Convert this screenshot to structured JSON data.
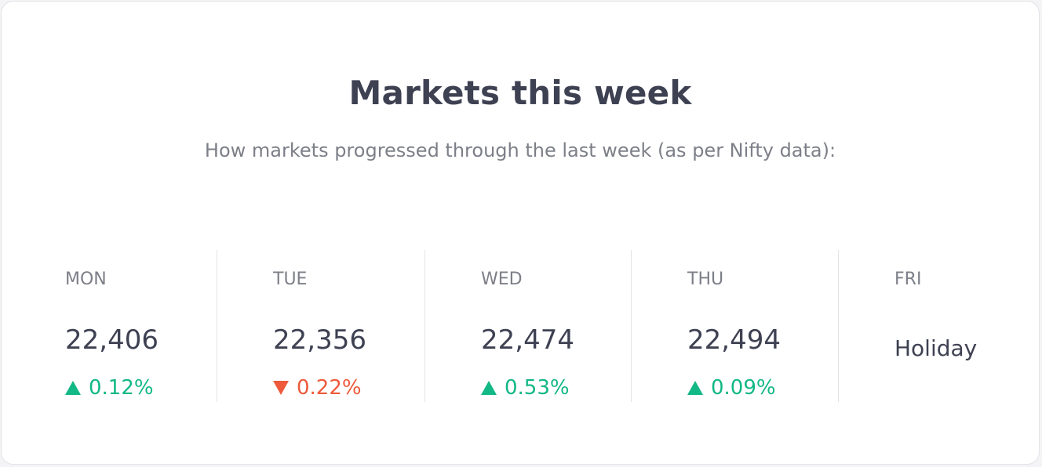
{
  "header": {
    "title": "Markets this week",
    "subtitle": "How markets progressed through the last week (as per Nifty data):"
  },
  "colors": {
    "up": "#12b886",
    "down": "#ee5a3b",
    "text_dark": "#3e4152",
    "text_muted": "#7d7f88"
  },
  "days": [
    {
      "name": "MON",
      "value": "22,406",
      "direction": "up",
      "change": "0.12%"
    },
    {
      "name": "TUE",
      "value": "22,356",
      "direction": "down",
      "change": "0.22%"
    },
    {
      "name": "WED",
      "value": "22,474",
      "direction": "up",
      "change": "0.53%"
    },
    {
      "name": "THU",
      "value": "22,494",
      "direction": "up",
      "change": "0.09%"
    },
    {
      "name": "FRI",
      "status": "Holiday"
    }
  ]
}
